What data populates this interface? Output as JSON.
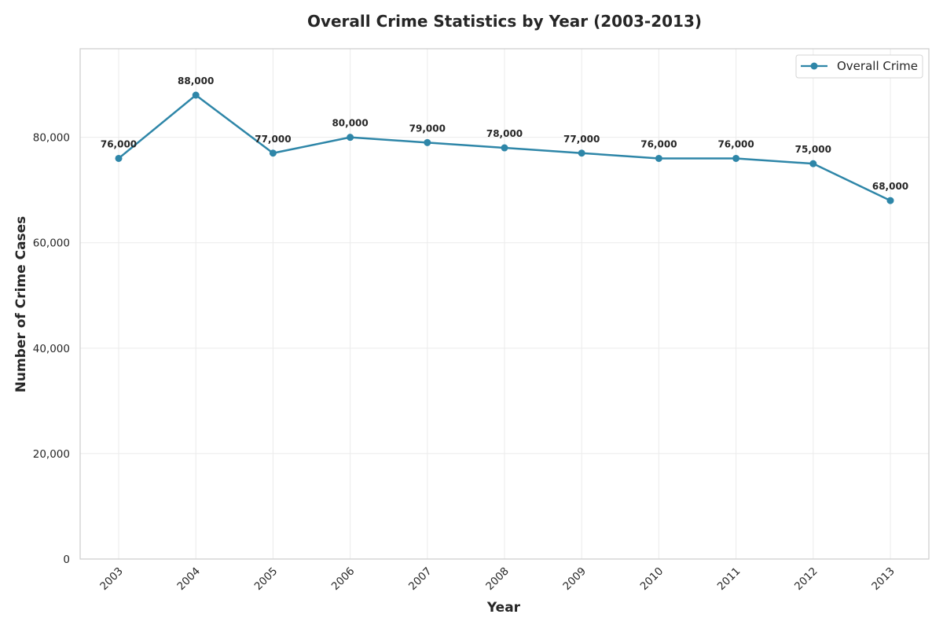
{
  "chart_data": {
    "type": "line",
    "title": "Overall Crime Statistics by Year (2003-2013)",
    "xlabel": "Year",
    "ylabel": "Number of Crime Cases",
    "categories": [
      "2003",
      "2004",
      "2005",
      "2006",
      "2007",
      "2008",
      "2009",
      "2010",
      "2011",
      "2012",
      "2013"
    ],
    "series": [
      {
        "name": "Overall Crime",
        "values": [
          76000,
          88000,
          77000,
          80000,
          79000,
          78000,
          77000,
          76000,
          76000,
          75000,
          68000
        ],
        "color": "#2e86a8"
      }
    ],
    "data_labels": [
      "76,000",
      "88,000",
      "77,000",
      "80,000",
      "79,000",
      "78,000",
      "77,000",
      "76,000",
      "76,000",
      "75,000",
      "68,000"
    ],
    "yticks": [
      0,
      20000,
      40000,
      60000,
      80000
    ],
    "ytick_labels": [
      "0",
      "20,000",
      "40,000",
      "60,000",
      "80,000"
    ],
    "ylim": [
      0,
      96800
    ],
    "grid": true,
    "legend_position": "top-right"
  }
}
